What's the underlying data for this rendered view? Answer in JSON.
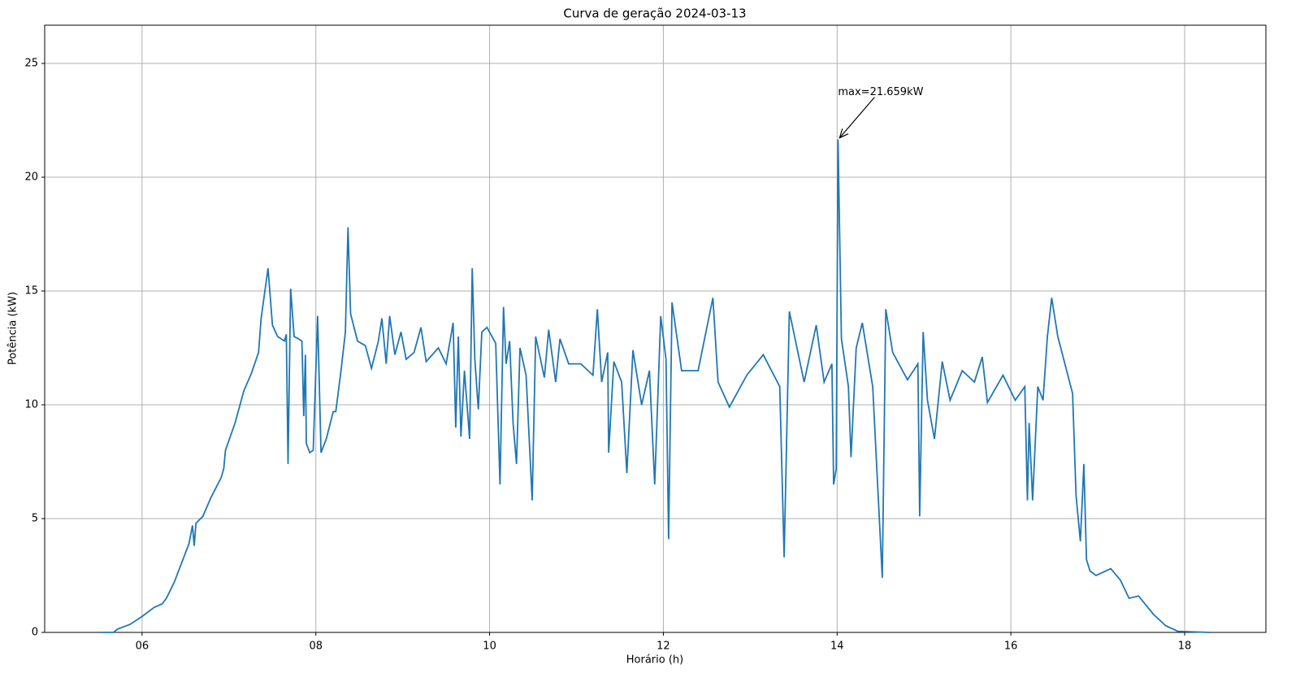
{
  "chart_data": {
    "type": "line",
    "title": "Curva de geração 2024-03-13",
    "xlabel": "Horário (h)",
    "ylabel": "Potência (kW)",
    "annotation": "max=21.659kW",
    "color": "#1f77b4",
    "grid": true,
    "xlim": [
      4.879,
      18.935
    ],
    "ylim": [
      0,
      26.68
    ],
    "xticks": [
      {
        "value": 6,
        "label": "06"
      },
      {
        "value": 8,
        "label": "08"
      },
      {
        "value": 10,
        "label": "10"
      },
      {
        "value": 12,
        "label": "12"
      },
      {
        "value": 14,
        "label": "14"
      },
      {
        "value": 16,
        "label": "16"
      },
      {
        "value": 18,
        "label": "18"
      }
    ],
    "yticks": [
      0,
      5,
      10,
      15,
      20,
      25
    ],
    "x": [
      5.52,
      5.67,
      5.72,
      5.86,
      6.0,
      6.14,
      6.23,
      6.28,
      6.37,
      6.47,
      6.54,
      6.58,
      6.6,
      6.62,
      6.7,
      6.79,
      6.91,
      6.94,
      6.96,
      7.07,
      7.17,
      7.26,
      7.34,
      7.37,
      7.45,
      7.5,
      7.56,
      7.64,
      7.66,
      7.68,
      7.71,
      7.75,
      7.8,
      7.84,
      7.86,
      7.88,
      7.89,
      7.93,
      7.97,
      7.99,
      8.02,
      8.06,
      8.12,
      8.2,
      8.23,
      8.29,
      8.34,
      8.37,
      8.4,
      8.48,
      8.57,
      8.64,
      8.72,
      8.76,
      8.81,
      8.85,
      8.91,
      8.98,
      9.04,
      9.13,
      9.21,
      9.27,
      9.41,
      9.5,
      9.58,
      9.61,
      9.64,
      9.67,
      9.71,
      9.77,
      9.8,
      9.83,
      9.87,
      9.91,
      9.97,
      10.07,
      10.12,
      10.16,
      10.19,
      10.23,
      10.27,
      10.31,
      10.35,
      10.42,
      10.49,
      10.53,
      10.63,
      10.68,
      10.76,
      10.81,
      10.91,
      11.05,
      11.19,
      11.24,
      11.29,
      11.36,
      11.37,
      11.43,
      11.52,
      11.58,
      11.65,
      11.75,
      11.84,
      11.9,
      11.97,
      12.03,
      12.06,
      12.1,
      12.21,
      12.4,
      12.57,
      12.63,
      12.76,
      12.96,
      13.15,
      13.34,
      13.39,
      13.45,
      13.62,
      13.76,
      13.85,
      13.94,
      13.96,
      13.99,
      14.01,
      14.05,
      14.13,
      14.16,
      14.22,
      14.29,
      14.41,
      14.52,
      14.56,
      14.64,
      14.81,
      14.93,
      14.95,
      14.99,
      15.04,
      15.12,
      15.21,
      15.3,
      15.44,
      15.58,
      15.67,
      15.73,
      15.91,
      16.05,
      16.16,
      16.19,
      16.21,
      16.25,
      16.31,
      16.37,
      16.42,
      16.47,
      16.54,
      16.71,
      16.75,
      16.8,
      16.84,
      16.87,
      16.91,
      16.98,
      17.15,
      17.26,
      17.36,
      17.47,
      17.64,
      17.78,
      17.92,
      18.29
    ],
    "values": [
      0,
      0,
      0.15,
      0.35,
      0.7,
      1.1,
      1.25,
      1.5,
      2.2,
      3.2,
      3.9,
      4.7,
      3.8,
      4.8,
      5.1,
      5.9,
      6.8,
      7.2,
      8.0,
      9.2,
      10.6,
      11.4,
      12.3,
      13.8,
      16.0,
      13.5,
      13.0,
      12.8,
      13.1,
      7.4,
      15.1,
      13.0,
      12.9,
      12.8,
      9.5,
      12.2,
      8.3,
      7.9,
      8.0,
      10.4,
      13.9,
      7.9,
      8.5,
      9.7,
      9.7,
      11.5,
      13.2,
      17.8,
      14.0,
      12.8,
      12.6,
      11.6,
      12.8,
      13.8,
      11.8,
      13.9,
      12.2,
      13.2,
      12.0,
      12.3,
      13.4,
      11.9,
      12.5,
      11.8,
      13.6,
      9.0,
      13.0,
      8.6,
      11.5,
      8.5,
      16.0,
      12.0,
      9.8,
      13.2,
      13.4,
      12.7,
      6.5,
      14.3,
      11.8,
      12.8,
      9.2,
      7.4,
      12.5,
      11.3,
      5.8,
      13.0,
      11.2,
      13.3,
      11.0,
      12.9,
      11.8,
      11.8,
      11.3,
      14.2,
      11.0,
      12.3,
      7.9,
      11.9,
      11.0,
      7.0,
      12.4,
      10.0,
      11.5,
      6.5,
      13.9,
      12.0,
      4.1,
      14.5,
      11.5,
      11.5,
      14.7,
      11.0,
      9.9,
      11.3,
      12.2,
      10.8,
      3.3,
      14.1,
      11.0,
      13.5,
      11.0,
      11.8,
      6.5,
      7.2,
      21.659,
      12.9,
      10.8,
      7.7,
      12.5,
      13.6,
      10.8,
      2.4,
      14.2,
      12.3,
      11.1,
      11.8,
      5.1,
      13.2,
      10.2,
      8.5,
      11.9,
      10.2,
      11.5,
      11.0,
      12.1,
      10.1,
      11.3,
      10.2,
      10.8,
      5.8,
      9.2,
      5.8,
      10.8,
      10.2,
      13.0,
      14.7,
      13.0,
      10.5,
      6.0,
      4.0,
      7.4,
      3.2,
      2.7,
      2.5,
      2.8,
      2.3,
      1.5,
      1.6,
      0.8,
      0.3,
      0.05,
      0
    ]
  }
}
